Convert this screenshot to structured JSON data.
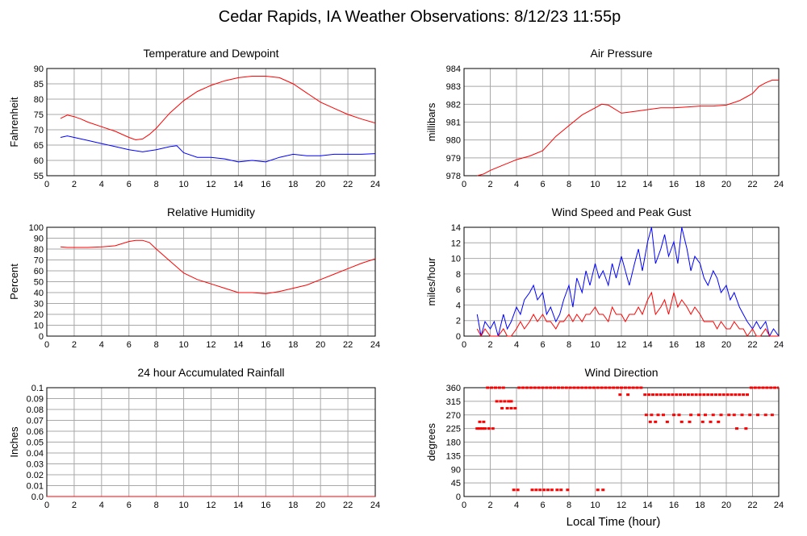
{
  "title": "Cedar Rapids, IA Weather Observations: 8/12/23 11:55p",
  "x_axis_title": "Local Time (hour)",
  "x_ticks": [
    "0",
    "2",
    "4",
    "6",
    "8",
    "10",
    "12",
    "14",
    "16",
    "18",
    "20",
    "22",
    "24"
  ],
  "colors": {
    "red": "#ff0000",
    "blue": "#0000ff",
    "grid": "#a8a8a8"
  },
  "chart_data": [
    {
      "type": "line",
      "title": "Temperature and Dewpoint",
      "ylabel": "Fahrenheit",
      "xlim": [
        0,
        24
      ],
      "ylim": [
        55,
        90
      ],
      "yticks": [
        "55",
        "60",
        "65",
        "70",
        "75",
        "80",
        "85",
        "90"
      ],
      "series": [
        {
          "color": "#ff0000",
          "x": [
            1,
            1.5,
            2,
            2.5,
            3,
            4,
            5,
            6,
            6.5,
            7,
            7.5,
            8,
            8.5,
            9,
            10,
            11,
            12,
            13,
            14,
            15,
            16,
            17,
            18,
            19,
            20,
            21,
            22,
            23,
            24
          ],
          "y": [
            73.7,
            74.8,
            74.3,
            73.5,
            72.5,
            71,
            69.5,
            67.5,
            66.7,
            67,
            68.5,
            70.5,
            73,
            75.5,
            79.5,
            82.5,
            84.5,
            86,
            87,
            87.5,
            87.5,
            87,
            85,
            82,
            79,
            77,
            75,
            73.5,
            72.2
          ]
        },
        {
          "color": "#0000ff",
          "x": [
            1,
            1.5,
            2,
            3,
            4,
            5,
            6,
            7,
            8,
            9,
            9.5,
            10,
            11,
            12,
            13,
            14,
            15,
            16,
            17,
            18,
            19,
            20,
            21,
            22,
            23,
            24
          ],
          "y": [
            67.5,
            68,
            67.5,
            66.5,
            65.5,
            64.5,
            63.5,
            62.8,
            63.5,
            64.5,
            64.8,
            62.5,
            61,
            61,
            60.5,
            59.5,
            60,
            59.5,
            61,
            62,
            61.5,
            61.5,
            62,
            62,
            62,
            62.2
          ]
        }
      ]
    },
    {
      "type": "line",
      "title": "Air Pressure",
      "ylabel": "millibars",
      "xlim": [
        0,
        24
      ],
      "ylim": [
        978,
        984
      ],
      "yticks": [
        "978",
        "979",
        "980",
        "981",
        "982",
        "983",
        "984"
      ],
      "series": [
        {
          "color": "#ff0000",
          "x": [
            1,
            1.5,
            2,
            3,
            4,
            5,
            6,
            7,
            8,
            9,
            10,
            10.5,
            11,
            12,
            13,
            14,
            15,
            16,
            17,
            18,
            19,
            20,
            21,
            21.5,
            22,
            22.5,
            23,
            23.5,
            24
          ],
          "y": [
            978,
            978.1,
            978.3,
            978.6,
            978.9,
            979.1,
            979.4,
            980.2,
            980.8,
            981.4,
            981.8,
            982,
            981.95,
            981.5,
            981.6,
            981.7,
            981.8,
            981.8,
            981.85,
            981.9,
            981.9,
            981.95,
            982.2,
            982.4,
            982.6,
            983,
            983.2,
            983.35,
            983.35
          ]
        }
      ]
    },
    {
      "type": "line",
      "title": "Relative Humidity",
      "ylabel": "Percent",
      "xlim": [
        0,
        24
      ],
      "ylim": [
        0,
        100
      ],
      "yticks": [
        "0",
        "10",
        "20",
        "30",
        "40",
        "50",
        "60",
        "70",
        "80",
        "90",
        "100"
      ],
      "series": [
        {
          "color": "#ff0000",
          "x": [
            1,
            1.5,
            2,
            3,
            4,
            5,
            6,
            6.5,
            7,
            7.5,
            8,
            9,
            10,
            11,
            12,
            13,
            14,
            15,
            16,
            17,
            18,
            19,
            20,
            21,
            22,
            23,
            24
          ],
          "y": [
            82,
            81.5,
            81.5,
            81.5,
            82,
            83,
            87,
            88,
            88,
            86,
            80,
            69,
            58,
            52,
            48,
            44,
            40,
            40,
            39,
            41,
            44,
            47,
            52,
            57,
            62,
            67,
            71
          ]
        }
      ]
    },
    {
      "type": "line",
      "title": "Wind Speed and Peak Gust",
      "ylabel": "miles/hour",
      "xlim": [
        0,
        24
      ],
      "ylim": [
        0,
        15
      ],
      "yticks": [
        "0",
        "2",
        "4",
        "6",
        "8",
        "10",
        "12",
        "14"
      ],
      "series": [
        {
          "color": "#0000ff",
          "x": [
            1,
            1.3,
            1.6,
            2,
            2.3,
            2.6,
            3,
            3.3,
            3.6,
            4,
            4.3,
            4.6,
            5,
            5.3,
            5.6,
            6,
            6.3,
            6.6,
            7,
            7.3,
            7.6,
            8,
            8.3,
            8.6,
            9,
            9.3,
            9.6,
            10,
            10.3,
            10.6,
            11,
            11.3,
            11.6,
            12,
            12.3,
            12.6,
            13,
            13.3,
            13.6,
            14,
            14.3,
            14.6,
            15,
            15.3,
            15.6,
            16,
            16.3,
            16.6,
            17,
            17.3,
            17.6,
            18,
            18.3,
            18.6,
            19,
            19.3,
            19.6,
            20,
            20.3,
            20.6,
            21,
            21.3,
            21.6,
            22,
            22.3,
            22.6,
            23,
            23.3,
            23.6,
            24
          ],
          "y": [
            3,
            0,
            2,
            1,
            2,
            0,
            3,
            1,
            2,
            4,
            3,
            5,
            6,
            7,
            5,
            6,
            3,
            4,
            2,
            3,
            5,
            7,
            4,
            8,
            6,
            9,
            7,
            10,
            8,
            9,
            7,
            10,
            8,
            11,
            9,
            7,
            10,
            12,
            9,
            13,
            15,
            10,
            12,
            14,
            11,
            13,
            10,
            15,
            12,
            9,
            11,
            10,
            8,
            7,
            9,
            8,
            6,
            7,
            5,
            6,
            4,
            3,
            2,
            1,
            2,
            1,
            2,
            0,
            1,
            0
          ]
        },
        {
          "color": "#ff0000",
          "x": [
            1,
            1.3,
            1.6,
            2,
            2.3,
            2.6,
            3,
            3.3,
            3.6,
            4,
            4.3,
            4.6,
            5,
            5.3,
            5.6,
            6,
            6.3,
            6.6,
            7,
            7.3,
            7.6,
            8,
            8.3,
            8.6,
            9,
            9.3,
            9.6,
            10,
            10.3,
            10.6,
            11,
            11.3,
            11.6,
            12,
            12.3,
            12.6,
            13,
            13.3,
            13.6,
            14,
            14.3,
            14.6,
            15,
            15.3,
            15.6,
            16,
            16.3,
            16.6,
            17,
            17.3,
            17.6,
            18,
            18.3,
            18.6,
            19,
            19.3,
            19.6,
            20,
            20.3,
            20.6,
            21,
            21.3,
            21.6,
            22,
            22.3,
            22.6,
            23,
            23.3,
            23.6,
            24
          ],
          "y": [
            1,
            0,
            1,
            0,
            0,
            0,
            1,
            0,
            0,
            1,
            2,
            1,
            2,
            3,
            2,
            3,
            2,
            2,
            1,
            2,
            2,
            3,
            2,
            3,
            2,
            3,
            3,
            4,
            3,
            3,
            2,
            4,
            3,
            3,
            2,
            3,
            3,
            4,
            3,
            5,
            6,
            3,
            4,
            5,
            3,
            6,
            4,
            5,
            4,
            3,
            4,
            3,
            2,
            2,
            2,
            1,
            2,
            1,
            1,
            2,
            1,
            1,
            0,
            1,
            0,
            0,
            1,
            0,
            0,
            0
          ]
        }
      ]
    },
    {
      "type": "line",
      "title": "24 hour Accumulated Rainfall",
      "ylabel": "Inches",
      "xlim": [
        0,
        24
      ],
      "ylim": [
        0,
        0.1
      ],
      "yticks": [
        "0.0",
        "0.01",
        "0.02",
        "0.03",
        "0.04",
        "0.05",
        "0.06",
        "0.07",
        "0.08",
        "0.09",
        "0.1"
      ],
      "series": [
        {
          "color": "#ff0000",
          "x": [
            0,
            24
          ],
          "y": [
            0,
            0
          ]
        }
      ]
    },
    {
      "type": "scatter",
      "title": "Wind Direction",
      "ylabel": "degrees",
      "xlim": [
        0,
        24
      ],
      "ylim": [
        0,
        360
      ],
      "yticks": [
        "0",
        "45",
        "90",
        "135",
        "180",
        "225",
        "270",
        "315",
        "360"
      ],
      "series": [
        {
          "color": "#ff0000",
          "x": [
            1,
            1.2,
            1.4,
            1.6,
            1.9,
            2.2,
            1.2,
            1.5,
            1.8,
            2.1,
            2.4,
            2.7,
            3,
            2.5,
            2.8,
            3.1,
            3.4,
            3.6,
            2.9,
            3.3,
            3.6,
            3.9,
            4.2,
            4.5,
            4.8,
            5.1,
            5.4,
            5.7,
            6,
            6.3,
            6.6,
            6.9,
            7.2,
            7.5,
            7.8,
            8.1,
            8.4,
            8.7,
            9,
            9.3,
            9.6,
            9.9,
            10.2,
            10.5,
            10.8,
            11.1,
            11.4,
            11.7,
            12,
            12.3,
            12.6,
            12.9,
            13.2,
            13.5,
            3.8,
            4.1,
            5.2,
            5.5,
            5.8,
            6.1,
            6.4,
            6.7,
            7.1,
            7.4,
            7.9,
            10.2,
            10.6,
            11.9,
            12.5,
            13.8,
            14.1,
            14.4,
            14.7,
            15,
            15.3,
            15.6,
            15.9,
            16.2,
            16.5,
            16.8,
            17.1,
            17.4,
            17.7,
            18,
            18.3,
            18.6,
            18.9,
            19.2,
            19.5,
            19.8,
            20.1,
            20.4,
            20.7,
            21,
            21.3,
            21.6,
            21.9,
            22.2,
            22.5,
            22.8,
            23.1,
            23.4,
            23.7,
            24,
            13.9,
            14.3,
            14.8,
            15.2,
            16,
            16.4,
            17.3,
            17.9,
            18.4,
            19,
            19.6,
            20.2,
            20.6,
            21.2,
            21.8,
            22.4,
            23,
            23.5,
            14.2,
            14.6,
            15.5,
            16.6,
            17.2,
            18.2,
            18.8,
            19.4,
            20.8,
            21.5
          ],
          "y": [
            225,
            225,
            225,
            225,
            225,
            225,
            247,
            247,
            360,
            360,
            360,
            360,
            360,
            315,
            315,
            315,
            315,
            315,
            292,
            292,
            292,
            292,
            360,
            360,
            360,
            360,
            360,
            360,
            360,
            360,
            360,
            360,
            360,
            360,
            360,
            360,
            360,
            360,
            360,
            360,
            360,
            360,
            360,
            360,
            360,
            360,
            360,
            360,
            360,
            360,
            360,
            360,
            360,
            360,
            22,
            22,
            22,
            22,
            22,
            22,
            22,
            22,
            22,
            22,
            22,
            22,
            22,
            337,
            337,
            337,
            337,
            337,
            337,
            337,
            337,
            337,
            337,
            337,
            337,
            337,
            337,
            337,
            337,
            337,
            337,
            337,
            337,
            337,
            337,
            337,
            337,
            337,
            337,
            337,
            337,
            337,
            360,
            360,
            360,
            360,
            360,
            360,
            360,
            360,
            270,
            270,
            270,
            270,
            270,
            270,
            270,
            270,
            270,
            270,
            270,
            270,
            270,
            270,
            270,
            270,
            270,
            270,
            247,
            247,
            247,
            247,
            247,
            247,
            247,
            247,
            225,
            225
          ]
        }
      ]
    }
  ]
}
